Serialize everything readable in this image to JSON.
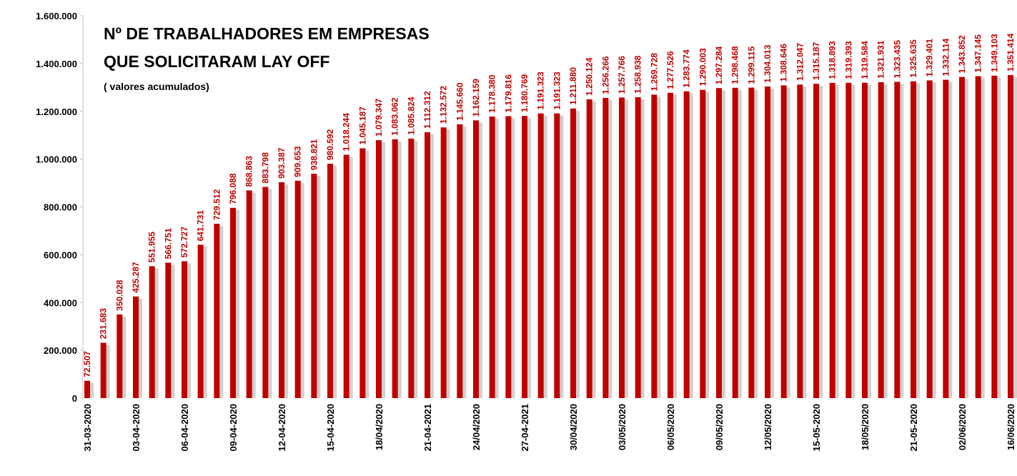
{
  "chart_data": {
    "type": "bar",
    "title": [
      "Nº DE TRABALHADORES EM EMPRESAS",
      "QUE SOLICITARAM LAY OFF"
    ],
    "subtitle": "( valores acumulados)",
    "color": "#c00000",
    "categories": [
      "31-03-2020",
      null,
      null,
      "03-04-2020",
      null,
      null,
      "06-04-2020",
      null,
      null,
      "09-04-2020",
      null,
      null,
      "12-04-2020",
      null,
      null,
      "15-04-2020",
      null,
      null,
      "18/04/2020",
      null,
      null,
      "21-04-2021",
      null,
      null,
      "24/04/2020",
      null,
      null,
      "27-04-2021",
      null,
      null,
      "30/04/2020",
      null,
      null,
      "03/05/2020",
      null,
      null,
      "06/05/2020",
      null,
      null,
      "09/05/2020",
      null,
      null,
      "12/05/2020",
      null,
      null,
      "15-05-2020",
      null,
      null,
      "18/05/2020",
      null,
      null,
      "21-05-2020",
      null,
      null,
      "02/06/2020",
      null,
      null,
      "16/06/2020"
    ],
    "values": [
      72507,
      231683,
      350028,
      425287,
      551955,
      566751,
      572727,
      641731,
      729512,
      796088,
      868863,
      883798,
      903387,
      909653,
      938821,
      980592,
      1018244,
      1045187,
      1079347,
      1083062,
      1085824,
      1112312,
      1132572,
      1145660,
      1162159,
      1178380,
      1179816,
      1180769,
      1191323,
      1191323,
      1211880,
      1250124,
      1256266,
      1257766,
      1258938,
      1269728,
      1277526,
      1283774,
      1290003,
      1297284,
      1298468,
      1299115,
      1304013,
      1308646,
      1312047,
      1315187,
      1318893,
      1319393,
      1319584,
      1321931,
      1323435,
      1325635,
      1329401,
      1332114,
      1343852,
      1347145,
      1349103,
      1351414
    ],
    "value_labels": [
      "72.507",
      "231.683",
      "350.028",
      "425.287",
      "551.955",
      "566.751",
      "572.727",
      "641.731",
      "729.512",
      "796.088",
      "868.863",
      "883.798",
      "903.387",
      "909.653",
      "938.821",
      "980.592",
      "1.018.244",
      "1.045.187",
      "1.079.347",
      "1.083.062",
      "1.085.824",
      "1.112.312",
      "1.132.572",
      "1.145.660",
      "1.162.159",
      "1.178.380",
      "1.179.816",
      "1.180.769",
      "1.191.323",
      "1.191.323",
      "1.211.880",
      "1.250.124",
      "1.256.266",
      "1.257.766",
      "1.258.938",
      "1.269.728",
      "1.277.526",
      "1.283.774",
      "1.290.003",
      "1.297.284",
      "1.298.468",
      "1.299.115",
      "1.304.013",
      "1.308.646",
      "1.312.047",
      "1.315.187",
      "1.318.893",
      "1.319.393",
      "1.319.584",
      "1.321.931",
      "1.323.435",
      "1.325.635",
      "1.329.401",
      "1.332.114",
      "1.343.852",
      "1.347.145",
      "1.349.103",
      "1.351.414"
    ],
    "ylim": [
      0,
      1600000
    ],
    "yticks": [
      0,
      {
        "value": 200000,
        "label": "200.000"
      },
      {
        "value": 400000,
        "label": "400.000"
      },
      {
        "value": 600000,
        "label": "600.000"
      },
      {
        "value": 800000,
        "label": "800.000"
      },
      {
        "value": 1000000,
        "label": "1.000.000"
      },
      {
        "value": 1200000,
        "label": "1.200.000"
      },
      {
        "value": 1400000,
        "label": "1.400.000"
      },
      {
        "value": 1600000,
        "label": "1.600.000"
      }
    ],
    "grid": false
  }
}
